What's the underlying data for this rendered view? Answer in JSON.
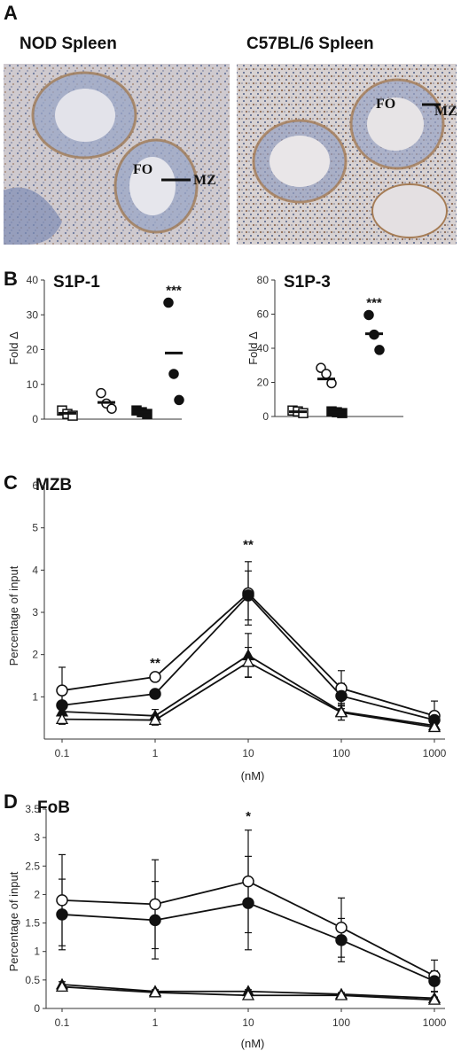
{
  "panels": {
    "a": {
      "letter": "A",
      "left_title": "NOD Spleen",
      "right_title": "C57BL/6 Spleen",
      "left_fo": "FO",
      "left_mz": "MZ",
      "right_fo": "FO",
      "right_mz": "MZ"
    },
    "b": {
      "letter": "B"
    },
    "c": {
      "letter": "C"
    },
    "d": {
      "letter": "D"
    }
  },
  "chart_data": [
    {
      "id": "s1p1",
      "type": "scatter",
      "title": "S1P-1",
      "ylabel": "Fold Δ",
      "ylim": [
        0,
        40
      ],
      "yticks": [
        0,
        10,
        20,
        30,
        40
      ],
      "groups": [
        {
          "marker": "open-square",
          "points": [
            2.5,
            1.5,
            1.0
          ],
          "mean": 1.7
        },
        {
          "marker": "open-circle",
          "points": [
            7.5,
            4.5,
            3.0
          ],
          "mean": 4.8
        },
        {
          "marker": "filled-square",
          "points": [
            2.5,
            2.0,
            1.5
          ],
          "mean": 2.0
        },
        {
          "marker": "filled-circle",
          "points": [
            33.5,
            13.0,
            5.5
          ],
          "mean": 19.0
        }
      ],
      "annotations": [
        {
          "group": 3,
          "text": "***"
        }
      ]
    },
    {
      "id": "s1p3",
      "type": "scatter",
      "title": "S1P-3",
      "ylabel": "Fold Δ",
      "ylim": [
        0,
        80
      ],
      "yticks": [
        0,
        20,
        40,
        60,
        80
      ],
      "groups": [
        {
          "marker": "open-square",
          "points": [
            3.5,
            3.0,
            2.0
          ],
          "mean": 2.8
        },
        {
          "marker": "open-circle",
          "points": [
            28.5,
            25.0,
            19.5
          ],
          "mean": 22.0
        },
        {
          "marker": "filled-square",
          "points": [
            3.0,
            2.5,
            2.0
          ],
          "mean": 2.5
        },
        {
          "marker": "filled-circle",
          "points": [
            59.5,
            48.0,
            39.0
          ],
          "mean": 48.5
        }
      ],
      "annotations": [
        {
          "group": 3,
          "text": "***"
        }
      ]
    },
    {
      "id": "mzb",
      "type": "line",
      "title": "MZB",
      "ylabel": "Percentage of input",
      "xlabel": "(nM)",
      "xscale": "log",
      "x": [
        0.1,
        1,
        10,
        100,
        1000
      ],
      "xticklabels": [
        "0.1",
        "1",
        "10",
        "100",
        "1000"
      ],
      "ylim": [
        0,
        6
      ],
      "yticks": [
        1,
        2,
        3,
        4,
        5,
        6
      ],
      "series": [
        {
          "marker": "open-circle",
          "values": [
            1.15,
            1.47,
            3.45,
            1.2,
            0.55
          ],
          "err": [
            0.55,
            0.05,
            0.75,
            0.42,
            0.35
          ]
        },
        {
          "marker": "filled-circle",
          "values": [
            0.8,
            1.07,
            3.4,
            1.02,
            0.45
          ],
          "err": [
            0.25,
            0.05,
            0.58,
            0.3,
            0.2
          ]
        },
        {
          "marker": "filled-triangle",
          "values": [
            0.65,
            0.55,
            1.98,
            0.65,
            0.32
          ],
          "err": [
            0.22,
            0.15,
            0.52,
            0.2,
            0.1
          ]
        },
        {
          "marker": "open-triangle",
          "values": [
            0.47,
            0.45,
            1.82,
            0.63,
            0.28
          ],
          "err": [
            0.12,
            0.12,
            0.35,
            0.18,
            0.08
          ]
        }
      ],
      "annotations": [
        {
          "x": 1,
          "y": 1.7,
          "text": "**"
        },
        {
          "x": 10,
          "y": 4.5,
          "text": "**"
        }
      ]
    },
    {
      "id": "fob",
      "type": "line",
      "title": "FoB",
      "ylabel": "Percentage of input",
      "xlabel": "(nM)",
      "xscale": "log",
      "x": [
        0.1,
        1,
        10,
        100,
        1000
      ],
      "xticklabels": [
        "0.1",
        "1",
        "10",
        "100",
        "1000"
      ],
      "ylim": [
        0,
        3.5
      ],
      "yticks": [
        0,
        0.5,
        1,
        1.5,
        2,
        2.5,
        3,
        3.5
      ],
      "yticklabels": [
        "0",
        "0.5",
        "1",
        "1.5",
        "2",
        "2.5",
        "3",
        "3.5"
      ],
      "series": [
        {
          "marker": "open-circle",
          "values": [
            1.9,
            1.83,
            2.23,
            1.42,
            0.57
          ],
          "err": [
            0.8,
            0.78,
            0.9,
            0.52,
            0.28
          ]
        },
        {
          "marker": "filled-circle",
          "values": [
            1.65,
            1.55,
            1.85,
            1.2,
            0.48
          ],
          "err": [
            0.62,
            0.68,
            0.82,
            0.38,
            0.18
          ]
        },
        {
          "marker": "filled-triangle",
          "values": [
            0.42,
            0.3,
            0.3,
            0.25,
            0.18
          ],
          "err": [
            0.05,
            0.03,
            0.03,
            0.03,
            0.02
          ]
        },
        {
          "marker": "open-triangle",
          "values": [
            0.38,
            0.28,
            0.23,
            0.23,
            0.15
          ],
          "err": [
            0.04,
            0.03,
            0.03,
            0.03,
            0.02
          ]
        }
      ],
      "annotations": [
        {
          "x": 10,
          "y": 3.3,
          "text": "*"
        }
      ]
    }
  ]
}
